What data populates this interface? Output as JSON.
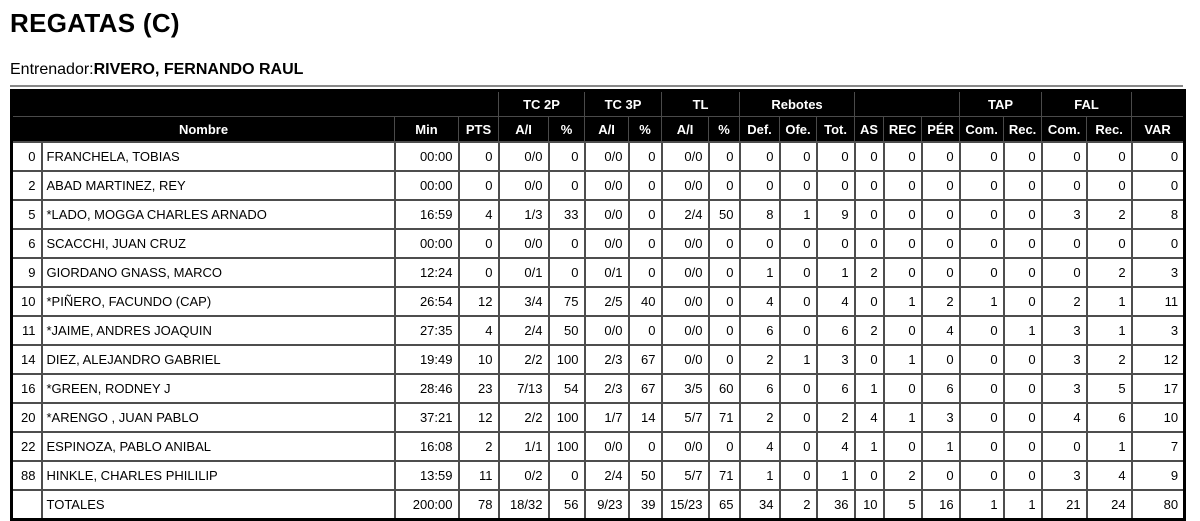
{
  "page": {
    "title": "REGATAS (C)",
    "coach_label": "Entrenador:",
    "coach_name": "RIVERO, FERNANDO RAUL"
  },
  "colors": {
    "header_bg": "#000000",
    "header_text": "#ffffff",
    "row_bg": "#ffffff",
    "grid_line": "#4d4d4d",
    "rule_line": "#888888"
  },
  "table": {
    "group_headers": [
      {
        "label": "",
        "span": 4
      },
      {
        "label": "TC 2P",
        "span": 2
      },
      {
        "label": "TC 3P",
        "span": 2
      },
      {
        "label": "TL",
        "span": 2
      },
      {
        "label": "Rebotes",
        "span": 3
      },
      {
        "label": "",
        "span": 3
      },
      {
        "label": "TAP",
        "span": 2
      },
      {
        "label": "FAL",
        "span": 2
      },
      {
        "label": "",
        "span": 1
      }
    ],
    "column_headers": [
      {
        "label": "Nombre",
        "span": 2
      },
      {
        "label": "Min",
        "span": 1
      },
      {
        "label": "PTS",
        "span": 1
      },
      {
        "label": "A/I",
        "span": 1
      },
      {
        "label": "%",
        "span": 1
      },
      {
        "label": "A/I",
        "span": 1
      },
      {
        "label": "%",
        "span": 1
      },
      {
        "label": "A/I",
        "span": 1
      },
      {
        "label": "%",
        "span": 1
      },
      {
        "label": "Def.",
        "span": 1
      },
      {
        "label": "Ofe.",
        "span": 1
      },
      {
        "label": "Tot.",
        "span": 1
      },
      {
        "label": "AS",
        "span": 1
      },
      {
        "label": "REC",
        "span": 1
      },
      {
        "label": "PÉR",
        "span": 1
      },
      {
        "label": "Com.",
        "span": 1
      },
      {
        "label": "Rec.",
        "span": 1
      },
      {
        "label": "Com.",
        "span": 1
      },
      {
        "label": "Rec.",
        "span": 1
      },
      {
        "label": "VAR",
        "span": 1
      }
    ],
    "rows": [
      {
        "num": "0",
        "name": "FRANCHELA, TOBIAS",
        "stats": [
          "00:00",
          "0",
          "0/0",
          "0",
          "0/0",
          "0",
          "0/0",
          "0",
          "0",
          "0",
          "0",
          "0",
          "0",
          "0",
          "0",
          "0",
          "0",
          "0",
          "0"
        ]
      },
      {
        "num": "2",
        "name": "ABAD MARTINEZ, REY",
        "stats": [
          "00:00",
          "0",
          "0/0",
          "0",
          "0/0",
          "0",
          "0/0",
          "0",
          "0",
          "0",
          "0",
          "0",
          "0",
          "0",
          "0",
          "0",
          "0",
          "0",
          "0"
        ]
      },
      {
        "num": "5",
        "name": "*LADO, MOGGA CHARLES ARNADO",
        "stats": [
          "16:59",
          "4",
          "1/3",
          "33",
          "0/0",
          "0",
          "2/4",
          "50",
          "8",
          "1",
          "9",
          "0",
          "0",
          "0",
          "0",
          "0",
          "3",
          "2",
          "8"
        ]
      },
      {
        "num": "6",
        "name": "SCACCHI, JUAN CRUZ",
        "stats": [
          "00:00",
          "0",
          "0/0",
          "0",
          "0/0",
          "0",
          "0/0",
          "0",
          "0",
          "0",
          "0",
          "0",
          "0",
          "0",
          "0",
          "0",
          "0",
          "0",
          "0"
        ]
      },
      {
        "num": "9",
        "name": "GIORDANO GNASS, MARCO",
        "stats": [
          "12:24",
          "0",
          "0/1",
          "0",
          "0/1",
          "0",
          "0/0",
          "0",
          "1",
          "0",
          "1",
          "2",
          "0",
          "0",
          "0",
          "0",
          "0",
          "2",
          "3"
        ]
      },
      {
        "num": "10",
        "name": "*PIÑERO, FACUNDO (CAP)",
        "stats": [
          "26:54",
          "12",
          "3/4",
          "75",
          "2/5",
          "40",
          "0/0",
          "0",
          "4",
          "0",
          "4",
          "0",
          "1",
          "2",
          "1",
          "0",
          "2",
          "1",
          "11"
        ]
      },
      {
        "num": "11",
        "name": "*JAIME, ANDRES JOAQUIN",
        "stats": [
          "27:35",
          "4",
          "2/4",
          "50",
          "0/0",
          "0",
          "0/0",
          "0",
          "6",
          "0",
          "6",
          "2",
          "0",
          "4",
          "0",
          "1",
          "3",
          "1",
          "3"
        ]
      },
      {
        "num": "14",
        "name": "DIEZ, ALEJANDRO GABRIEL",
        "stats": [
          "19:49",
          "10",
          "2/2",
          "100",
          "2/3",
          "67",
          "0/0",
          "0",
          "2",
          "1",
          "3",
          "0",
          "1",
          "0",
          "0",
          "0",
          "3",
          "2",
          "12"
        ]
      },
      {
        "num": "16",
        "name": "*GREEN, RODNEY J",
        "stats": [
          "28:46",
          "23",
          "7/13",
          "54",
          "2/3",
          "67",
          "3/5",
          "60",
          "6",
          "0",
          "6",
          "1",
          "0",
          "6",
          "0",
          "0",
          "3",
          "5",
          "17"
        ]
      },
      {
        "num": "20",
        "name": "*ARENGO , JUAN PABLO",
        "stats": [
          "37:21",
          "12",
          "2/2",
          "100",
          "1/7",
          "14",
          "5/7",
          "71",
          "2",
          "0",
          "2",
          "4",
          "1",
          "3",
          "0",
          "0",
          "4",
          "6",
          "10"
        ]
      },
      {
        "num": "22",
        "name": "ESPINOZA, PABLO ANIBAL",
        "stats": [
          "16:08",
          "2",
          "1/1",
          "100",
          "0/0",
          "0",
          "0/0",
          "0",
          "4",
          "0",
          "4",
          "1",
          "0",
          "1",
          "0",
          "0",
          "0",
          "1",
          "7"
        ]
      },
      {
        "num": "88",
        "name": "HINKLE, CHARLES PHILILIP",
        "stats": [
          "13:59",
          "11",
          "0/2",
          "0",
          "2/4",
          "50",
          "5/7",
          "71",
          "1",
          "0",
          "1",
          "0",
          "2",
          "0",
          "0",
          "0",
          "3",
          "4",
          "9"
        ]
      }
    ],
    "totals": {
      "num": "",
      "name": "TOTALES",
      "stats": [
        "200:00",
        "78",
        "18/32",
        "56",
        "9/23",
        "39",
        "15/23",
        "65",
        "34",
        "2",
        "36",
        "10",
        "5",
        "16",
        "1",
        "1",
        "21",
        "24",
        "80"
      ]
    }
  }
}
